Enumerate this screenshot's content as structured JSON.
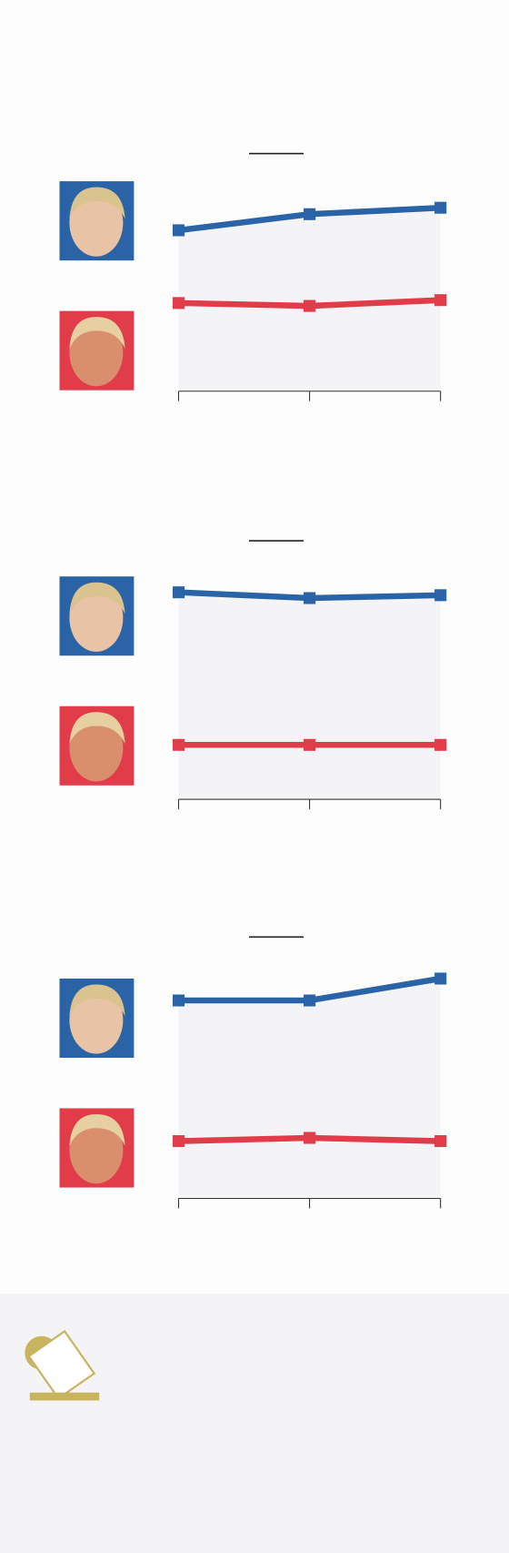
{
  "chart_data": [
    {
      "type": "line",
      "categories": [
        null,
        null,
        null
      ],
      "ylim": [
        0,
        60
      ],
      "area_color": "#f4f4f7",
      "series": [
        {
          "color": "#2a64a6",
          "values": [
            50,
            55,
            57
          ]
        },
        {
          "color": "#e03c4a",
          "values": [
            27.4,
            26.5,
            28.3
          ]
        }
      ]
    },
    {
      "type": "line",
      "categories": [
        null,
        null,
        null
      ],
      "ylim": [
        0,
        70
      ],
      "area_color": "#f4f4f7",
      "series": [
        {
          "color": "#2a64a6",
          "values": [
            64.3,
            62.5,
            63.4
          ]
        },
        {
          "color": "#e03c4a",
          "values": [
            16.9,
            16.9,
            16.9
          ]
        }
      ]
    },
    {
      "type": "line",
      "categories": [
        null,
        null,
        null
      ],
      "ylim": [
        0,
        70
      ],
      "area_color": "#f4f4f7",
      "series": [
        {
          "color": "#2a64a6",
          "values": [
            61.5,
            61.5,
            68.3
          ]
        },
        {
          "color": "#e03c4a",
          "values": [
            17.8,
            18.8,
            17.8
          ]
        }
      ]
    }
  ]
}
